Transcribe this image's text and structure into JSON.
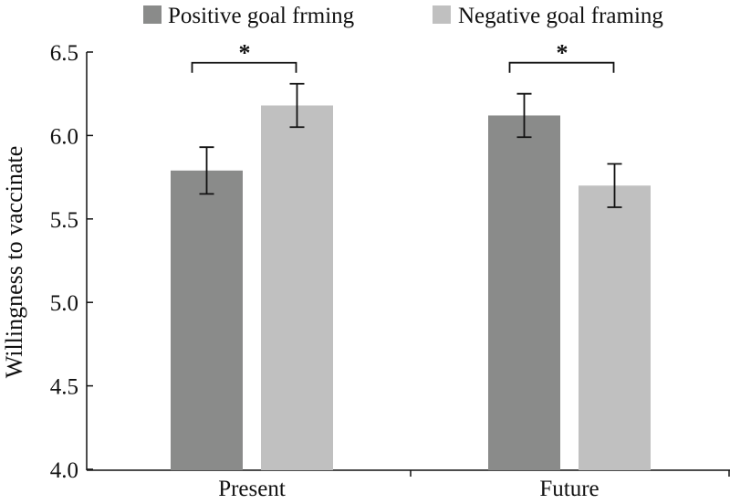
{
  "chart_data": {
    "type": "bar",
    "title": "",
    "xlabel": "",
    "ylabel": "Willingness to vaccinate",
    "ylim": [
      4.0,
      6.5
    ],
    "yticks": [
      "4.0",
      "4.5",
      "5.0",
      "5.5",
      "6.0",
      "6.5"
    ],
    "categories": [
      "Present",
      "Future"
    ],
    "series": [
      {
        "name": "Positive goal frming",
        "color": "#8a8b8a",
        "values": [
          5.79,
          6.12
        ],
        "errors": [
          0.14,
          0.13
        ]
      },
      {
        "name": "Negative goal framing",
        "color": "#c0c0c0",
        "values": [
          6.18,
          5.7
        ],
        "errors": [
          0.13,
          0.13
        ]
      }
    ],
    "significance": [
      {
        "category": "Present",
        "label": "*"
      },
      {
        "category": "Future",
        "label": "*"
      }
    ],
    "grid": false,
    "legend_position": "top"
  }
}
